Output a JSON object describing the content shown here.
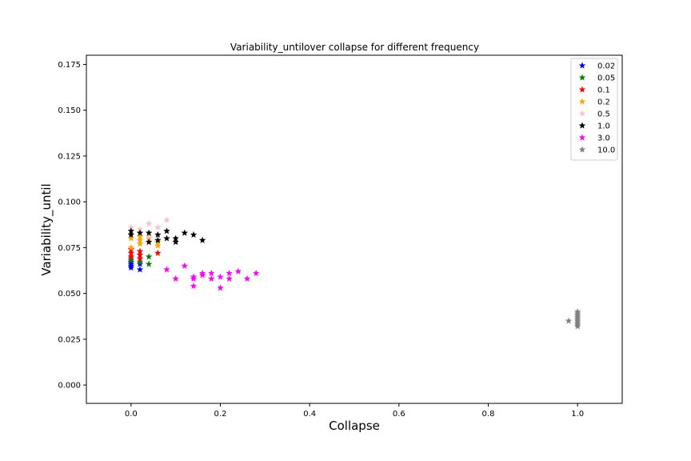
{
  "chart_data": {
    "type": "scatter",
    "title": "Variability_untilover collapse for different frequency",
    "xlabel": "Collapse",
    "ylabel": "Variability_until",
    "xlim": [
      -0.1,
      1.1
    ],
    "ylim": [
      -0.01,
      0.18
    ],
    "xticks": [
      0.0,
      0.2,
      0.4,
      0.6,
      0.8,
      1.0
    ],
    "yticks": [
      0.0,
      0.025,
      0.05,
      0.075,
      0.1,
      0.125,
      0.15,
      0.175
    ],
    "xtick_labels": [
      "0.0",
      "0.2",
      "0.4",
      "0.6",
      "0.8",
      "1.0"
    ],
    "ytick_labels": [
      "0.000",
      "0.025",
      "0.050",
      "0.075",
      "0.100",
      "0.125",
      "0.150",
      "0.175"
    ],
    "grid": false,
    "legend_position": "top-right",
    "marker": "star",
    "series": [
      {
        "name": "0.02",
        "color": "#0000ff",
        "x": [
          0.0,
          0.0,
          0.0,
          0.0,
          0.02,
          0.02
        ],
        "y": [
          0.064,
          0.065,
          0.066,
          0.067,
          0.063,
          0.066
        ]
      },
      {
        "name": "0.05",
        "color": "#008000",
        "x": [
          0.0,
          0.0,
          0.02,
          0.04,
          0.04
        ],
        "y": [
          0.068,
          0.069,
          0.067,
          0.066,
          0.07
        ]
      },
      {
        "name": "0.1",
        "color": "#ff0000",
        "x": [
          0.0,
          0.0,
          0.0,
          0.02,
          0.02,
          0.02,
          0.06
        ],
        "y": [
          0.07,
          0.072,
          0.074,
          0.069,
          0.071,
          0.073,
          0.072
        ]
      },
      {
        "name": "0.2",
        "color": "#ffa500",
        "x": [
          0.0,
          0.0,
          0.02,
          0.02,
          0.02,
          0.04,
          0.04,
          0.06,
          0.06
        ],
        "y": [
          0.075,
          0.08,
          0.077,
          0.079,
          0.081,
          0.078,
          0.08,
          0.076,
          0.078
        ]
      },
      {
        "name": "0.5",
        "color": "#ffc0cb",
        "x": [
          0.0,
          0.0,
          0.02,
          0.04,
          0.04,
          0.06,
          0.08
        ],
        "y": [
          0.086,
          0.082,
          0.085,
          0.088,
          0.081,
          0.086,
          0.09
        ]
      },
      {
        "name": "1.0",
        "color": "#000000",
        "x": [
          0.0,
          0.0,
          0.02,
          0.04,
          0.04,
          0.06,
          0.06,
          0.08,
          0.08,
          0.1,
          0.1,
          0.12,
          0.14,
          0.16
        ],
        "y": [
          0.084,
          0.082,
          0.083,
          0.083,
          0.078,
          0.082,
          0.079,
          0.084,
          0.08,
          0.08,
          0.078,
          0.083,
          0.082,
          0.079
        ]
      },
      {
        "name": "3.0",
        "color": "#ff00ff",
        "x": [
          0.08,
          0.1,
          0.12,
          0.14,
          0.14,
          0.14,
          0.16,
          0.16,
          0.18,
          0.18,
          0.2,
          0.2,
          0.22,
          0.22,
          0.24,
          0.26,
          0.28
        ],
        "y": [
          0.063,
          0.058,
          0.065,
          0.059,
          0.058,
          0.054,
          0.06,
          0.061,
          0.061,
          0.058,
          0.059,
          0.053,
          0.061,
          0.058,
          0.062,
          0.058,
          0.061
        ]
      },
      {
        "name": "10.0",
        "color": "#808080",
        "x": [
          0.98,
          1.0,
          1.0,
          1.0,
          1.0,
          1.0,
          1.0,
          1.0,
          1.0,
          1.0
        ],
        "y": [
          0.035,
          0.033,
          0.034,
          0.035,
          0.036,
          0.037,
          0.038,
          0.039,
          0.04,
          0.032
        ]
      }
    ]
  }
}
